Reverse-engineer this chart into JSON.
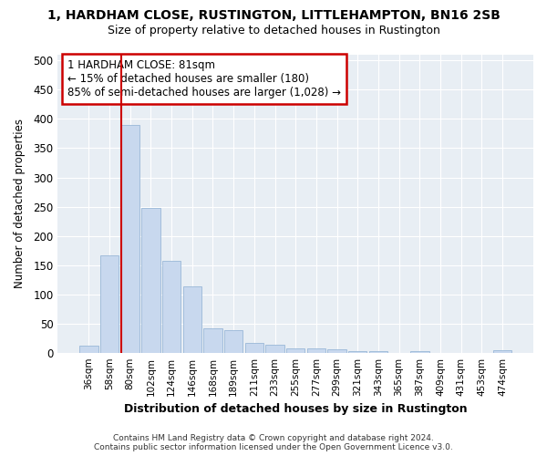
{
  "title": "1, HARDHAM CLOSE, RUSTINGTON, LITTLEHAMPTON, BN16 2SB",
  "subtitle": "Size of property relative to detached houses in Rustington",
  "xlabel": "Distribution of detached houses by size in Rustington",
  "ylabel": "Number of detached properties",
  "footer_line1": "Contains HM Land Registry data © Crown copyright and database right 2024.",
  "footer_line2": "Contains public sector information licensed under the Open Government Licence v3.0.",
  "categories": [
    "36sqm",
    "58sqm",
    "80sqm",
    "102sqm",
    "124sqm",
    "146sqm",
    "168sqm",
    "189sqm",
    "211sqm",
    "233sqm",
    "255sqm",
    "277sqm",
    "299sqm",
    "321sqm",
    "343sqm",
    "365sqm",
    "387sqm",
    "409sqm",
    "431sqm",
    "453sqm",
    "474sqm"
  ],
  "values": [
    12,
    167,
    390,
    248,
    157,
    113,
    42,
    39,
    17,
    14,
    8,
    7,
    5,
    3,
    3,
    0,
    3,
    0,
    0,
    0,
    4
  ],
  "bar_color": "#c8d8ee",
  "bar_edge_color": "#9ab8d8",
  "property_line_label": "1 HARDHAM CLOSE: 81sqm",
  "annotation_line1": "← 15% of detached houses are smaller (180)",
  "annotation_line2": "85% of semi-detached houses are larger (1,028) →",
  "annotation_box_color": "#ffffff",
  "annotation_box_edge_color": "#cc0000",
  "line_color": "#cc0000",
  "line_x_index": 2,
  "ylim": [
    0,
    510
  ],
  "yticks": [
    0,
    50,
    100,
    150,
    200,
    250,
    300,
    350,
    400,
    450,
    500
  ],
  "bg_color": "#ffffff",
  "plot_bg_color": "#e8eef4",
  "grid_color": "#ffffff",
  "title_fontsize": 10,
  "subtitle_fontsize": 9
}
